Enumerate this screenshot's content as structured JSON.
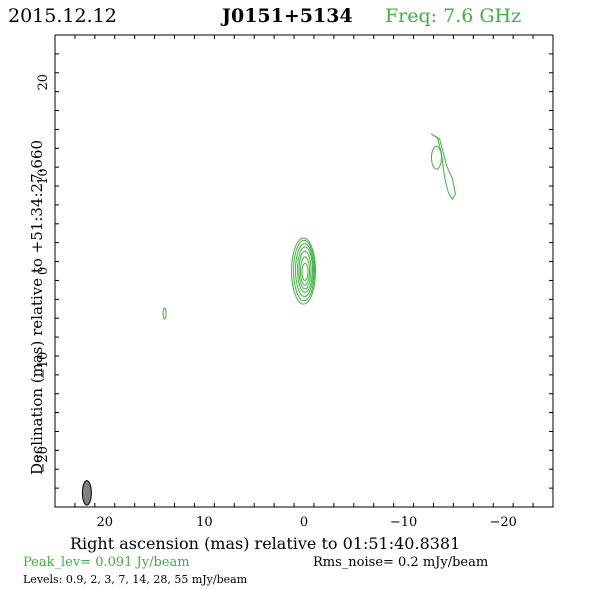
{
  "header": {
    "date": "2015.12.12",
    "source": "J0151+5134",
    "frequency": "Freq: 7.6 GHz"
  },
  "footer": {
    "peak": "Peak_lev=  0.091 Jy/beam",
    "rms": "Rms_noise=   0.2 mJy/beam",
    "levels": "Levels: 0.9,    2,    3,    7,   14,   28,   55 mJy/beam"
  },
  "colors": {
    "contour": "#3cb33c",
    "beam": "#808080",
    "axes": "#000000"
  },
  "chart_data": {
    "type": "contour",
    "title": "J0151+5134",
    "xlabel": "Right ascension (mas) relative to 01:51:40.8381",
    "ylabel": "Declination (mas) relative to +51:34:27.660",
    "xlim": [
      25,
      -25
    ],
    "ylim": [
      -25,
      25
    ],
    "x_ticks": [
      20,
      10,
      0,
      -10,
      -20
    ],
    "x_tick_labels": [
      "20",
      "10",
      "0",
      "−10",
      "−20"
    ],
    "y_ticks": [
      20,
      10,
      0,
      -10,
      -20
    ],
    "y_tick_labels": [
      "20",
      "10",
      "0",
      "−10",
      "−20"
    ],
    "levels_mJy_per_beam": [
      0.9,
      2,
      3,
      7,
      14,
      28,
      55
    ],
    "components": [
      {
        "label": "core",
        "contours": [
          {
            "cx": 0.05,
            "cy": 0.0,
            "rx": 1.2,
            "ry": 3.5
          },
          {
            "cx": 0.0,
            "cy": 0.05,
            "rx": 1.05,
            "ry": 3.2
          },
          {
            "cx": -0.05,
            "cy": 0.1,
            "rx": 0.9,
            "ry": 2.8
          },
          {
            "cx": -0.1,
            "cy": 0.15,
            "rx": 0.75,
            "ry": 2.4
          },
          {
            "cx": -0.1,
            "cy": 0.1,
            "rx": 0.6,
            "ry": 2.0
          },
          {
            "cx": -0.1,
            "cy": 0.0,
            "rx": 0.45,
            "ry": 1.5
          },
          {
            "cx": -0.1,
            "cy": -0.1,
            "rx": 0.3,
            "ry": 0.9
          }
        ]
      },
      {
        "label": "jet",
        "outer": [
          [
            -12.8,
            14.5
          ],
          [
            -13.4,
            14.1
          ],
          [
            -13.8,
            12.5
          ],
          [
            -14.0,
            10.8
          ],
          [
            -14.2,
            9.5
          ],
          [
            -14.5,
            8.3
          ],
          [
            -14.9,
            7.6
          ],
          [
            -15.2,
            8.2
          ],
          [
            -14.9,
            9.8
          ],
          [
            -14.3,
            11.2
          ],
          [
            -13.9,
            12.9
          ],
          [
            -13.6,
            14.0
          ]
        ],
        "inner": {
          "cx": -13.3,
          "cy": 12.0,
          "rx": 0.5,
          "ry": 1.2
        }
      },
      {
        "label": "feature",
        "contours": [
          {
            "cx": 14.0,
            "cy": -4.5,
            "rx": 0.15,
            "ry": 0.6
          }
        ]
      }
    ],
    "beam": {
      "cx": 21.8,
      "cy": -23.5,
      "major": 2.6,
      "minor": 0.9,
      "pa_deg": 0
    }
  }
}
